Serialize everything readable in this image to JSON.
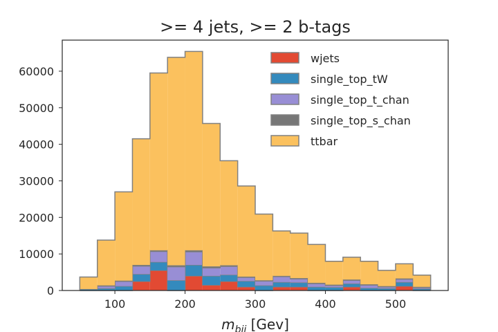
{
  "chart_data": {
    "type": "bar",
    "stacked": true,
    "histogram": true,
    "title": ">= 4 jets, >= 2 b-tags",
    "xlabel": "m_bjj [Gev]",
    "ylabel": "",
    "xlim": [
      25,
      575
    ],
    "ylim": [
      0,
      68500
    ],
    "bin_edges": [
      50,
      75,
      100,
      125,
      150,
      175,
      200,
      225,
      250,
      275,
      300,
      325,
      350,
      375,
      400,
      425,
      450,
      475,
      500,
      525,
      550
    ],
    "x_ticks": [
      100,
      200,
      300,
      400,
      500
    ],
    "y_ticks": [
      0,
      10000,
      20000,
      30000,
      40000,
      50000,
      60000
    ],
    "legend_position": "upper-right",
    "grid": false,
    "series": [
      {
        "name": "wjets",
        "color": "#e24a33",
        "values": [
          0,
          0,
          0,
          2500,
          5500,
          0,
          4000,
          1500,
          2500,
          1000,
          0,
          1000,
          1000,
          0,
          0,
          1000,
          0,
          0,
          1200,
          0
        ]
      },
      {
        "name": "single_top_tW",
        "color": "#348abd",
        "values": [
          400,
          600,
          1200,
          2000,
          2300,
          2800,
          3000,
          2500,
          1800,
          1600,
          1400,
          1300,
          1200,
          1000,
          900,
          900,
          700,
          600,
          1100,
          500
        ]
      },
      {
        "name": "single_top_t_chan",
        "color": "#988ed5",
        "values": [
          0,
          600,
          1300,
          2200,
          2900,
          3700,
          3600,
          2200,
          2300,
          1000,
          1200,
          1500,
          1000,
          900,
          500,
          900,
          800,
          400,
          800,
          300
        ]
      },
      {
        "name": "single_top_s_chan",
        "color": "#777777",
        "values": [
          0,
          200,
          200,
          300,
          300,
          400,
          400,
          400,
          300,
          200,
          200,
          200,
          200,
          200,
          200,
          200,
          200,
          200,
          200,
          200
        ]
      },
      {
        "name": "ttbar",
        "color": "#fbc15e",
        "values": [
          3300,
          12400,
          24300,
          34500,
          48500,
          56900,
          54400,
          39100,
          28600,
          24800,
          18100,
          12300,
          12300,
          10500,
          6400,
          6100,
          6300,
          4300,
          4000,
          3200
        ]
      }
    ]
  }
}
